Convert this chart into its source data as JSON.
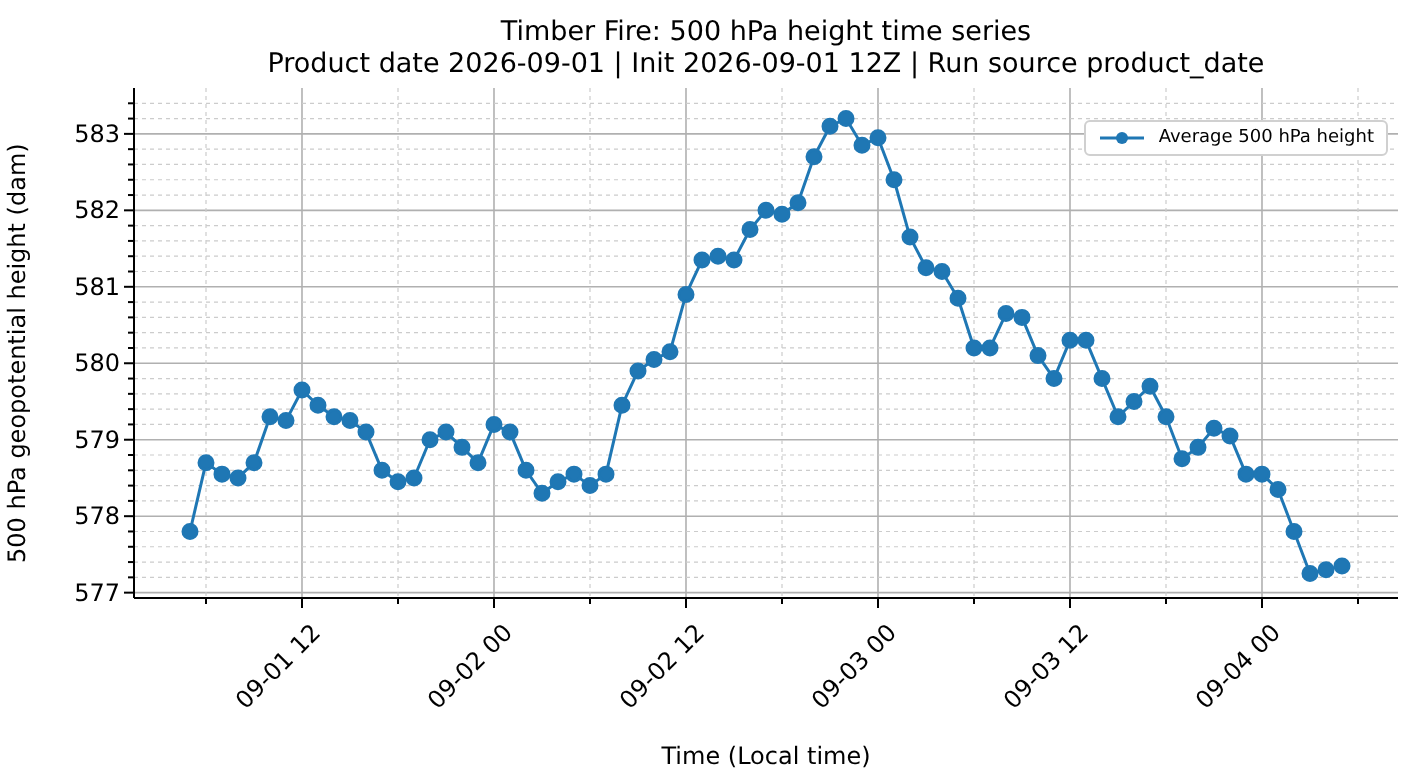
{
  "chart_data": {
    "type": "line",
    "title": "Timber Fire: 500 hPa height time series",
    "subtitle": "Product date 2026-09-01 | Init 2026-09-01 12Z | Run source product_date",
    "xlabel": "Time (Local time)",
    "ylabel": "500 hPa geopotential height (dam)",
    "x": [
      "2026-09-01T05:00",
      "2026-09-01T06:00",
      "2026-09-01T07:00",
      "2026-09-01T08:00",
      "2026-09-01T09:00",
      "2026-09-01T10:00",
      "2026-09-01T11:00",
      "2026-09-01T12:00",
      "2026-09-01T13:00",
      "2026-09-01T14:00",
      "2026-09-01T15:00",
      "2026-09-01T16:00",
      "2026-09-01T17:00",
      "2026-09-01T18:00",
      "2026-09-01T19:00",
      "2026-09-01T20:00",
      "2026-09-01T21:00",
      "2026-09-01T22:00",
      "2026-09-01T23:00",
      "2026-09-02T00:00",
      "2026-09-02T01:00",
      "2026-09-02T02:00",
      "2026-09-02T03:00",
      "2026-09-02T04:00",
      "2026-09-02T05:00",
      "2026-09-02T06:00",
      "2026-09-02T07:00",
      "2026-09-02T08:00",
      "2026-09-02T09:00",
      "2026-09-02T10:00",
      "2026-09-02T11:00",
      "2026-09-02T12:00",
      "2026-09-02T13:00",
      "2026-09-02T14:00",
      "2026-09-02T15:00",
      "2026-09-02T16:00",
      "2026-09-02T17:00",
      "2026-09-02T18:00",
      "2026-09-02T19:00",
      "2026-09-02T20:00",
      "2026-09-02T21:00",
      "2026-09-02T22:00",
      "2026-09-02T23:00",
      "2026-09-03T00:00",
      "2026-09-03T01:00",
      "2026-09-03T02:00",
      "2026-09-03T03:00",
      "2026-09-03T04:00",
      "2026-09-03T05:00",
      "2026-09-03T06:00",
      "2026-09-03T07:00",
      "2026-09-03T08:00",
      "2026-09-03T09:00",
      "2026-09-03T10:00",
      "2026-09-03T11:00",
      "2026-09-03T12:00",
      "2026-09-03T13:00",
      "2026-09-03T14:00",
      "2026-09-03T15:00",
      "2026-09-03T16:00",
      "2026-09-03T17:00",
      "2026-09-03T18:00",
      "2026-09-03T19:00",
      "2026-09-03T20:00",
      "2026-09-03T21:00",
      "2026-09-03T22:00",
      "2026-09-03T23:00",
      "2026-09-04T00:00",
      "2026-09-04T01:00",
      "2026-09-04T02:00",
      "2026-09-04T03:00",
      "2026-09-04T04:00",
      "2026-09-04T05:00"
    ],
    "series": [
      {
        "name": "Average 500 hPa height",
        "color": "#1f77b4",
        "values": [
          577.8,
          578.7,
          578.55,
          578.5,
          578.7,
          579.3,
          579.25,
          579.65,
          579.45,
          579.3,
          579.25,
          579.1,
          578.6,
          578.45,
          578.5,
          579.0,
          579.1,
          578.9,
          578.7,
          579.2,
          579.1,
          578.6,
          578.3,
          578.45,
          578.55,
          578.4,
          578.55,
          579.45,
          579.9,
          580.05,
          580.15,
          580.9,
          581.35,
          581.4,
          581.35,
          581.75,
          582.0,
          581.95,
          582.1,
          582.7,
          583.1,
          583.2,
          582.85,
          582.95,
          582.4,
          581.65,
          581.25,
          581.2,
          580.85,
          580.2,
          580.2,
          580.65,
          580.6,
          580.1,
          579.8,
          580.3,
          580.3,
          579.8,
          579.3,
          579.5,
          579.7,
          579.3,
          578.75,
          578.9,
          579.15,
          579.05,
          578.55,
          578.55,
          578.35,
          577.8,
          577.25,
          577.3,
          577.35
        ]
      }
    ],
    "xlim": [
      "2026-09-01T01:30",
      "2026-09-04T08:30"
    ],
    "xticks": [
      {
        "value": "2026-09-01T06:00",
        "label": null
      },
      {
        "value": "2026-09-01T12:00",
        "label": "09-01 12"
      },
      {
        "value": "2026-09-01T18:00",
        "label": null
      },
      {
        "value": "2026-09-02T00:00",
        "label": "09-02 00"
      },
      {
        "value": "2026-09-02T06:00",
        "label": null
      },
      {
        "value": "2026-09-02T12:00",
        "label": "09-02 12"
      },
      {
        "value": "2026-09-02T18:00",
        "label": null
      },
      {
        "value": "2026-09-03T00:00",
        "label": "09-03 00"
      },
      {
        "value": "2026-09-03T06:00",
        "label": null
      },
      {
        "value": "2026-09-03T12:00",
        "label": "09-03 12"
      },
      {
        "value": "2026-09-03T18:00",
        "label": null
      },
      {
        "value": "2026-09-04T00:00",
        "label": "09-04 00"
      },
      {
        "value": "2026-09-04T06:00",
        "label": null
      }
    ],
    "ylim": [
      576.93,
      583.6
    ],
    "yticks": [
      577,
      {
        "value": 577.2,
        "label": null
      },
      {
        "value": 577.4,
        "label": null
      },
      {
        "value": 577.6,
        "label": null
      },
      {
        "value": 577.8,
        "label": null
      },
      578,
      {
        "value": 578.2,
        "label": null
      },
      {
        "value": 578.4,
        "label": null
      },
      {
        "value": 578.6,
        "label": null
      },
      {
        "value": 578.8,
        "label": null
      },
      579,
      {
        "value": 579.2,
        "label": null
      },
      {
        "value": 579.4,
        "label": null
      },
      {
        "value": 579.6,
        "label": null
      },
      {
        "value": 579.8,
        "label": null
      },
      580,
      {
        "value": 580.2,
        "label": null
      },
      {
        "value": 580.4,
        "label": null
      },
      {
        "value": 580.6,
        "label": null
      },
      {
        "value": 580.8,
        "label": null
      },
      581,
      {
        "value": 581.2,
        "label": null
      },
      {
        "value": 581.4,
        "label": null
      },
      {
        "value": 581.6,
        "label": null
      },
      {
        "value": 581.8,
        "label": null
      },
      582,
      {
        "value": 582.2,
        "label": null
      },
      {
        "value": 582.4,
        "label": null
      },
      {
        "value": 582.6,
        "label": null
      },
      {
        "value": 582.8,
        "label": null
      },
      583,
      {
        "value": 583.2,
        "label": null
      },
      {
        "value": 583.4,
        "label": null
      }
    ],
    "grid": true,
    "legend": "top right",
    "marker": "circle",
    "line_style": "solid"
  }
}
